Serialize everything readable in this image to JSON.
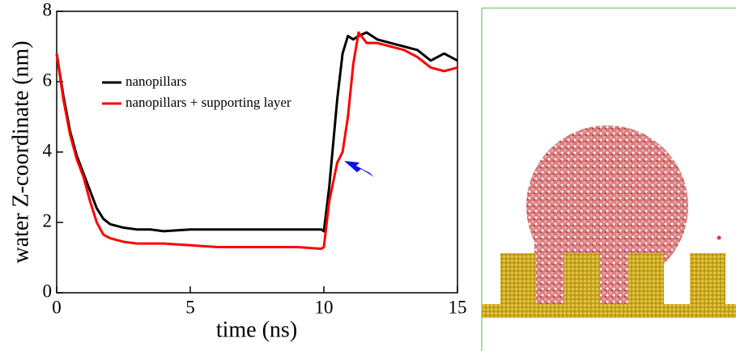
{
  "chart_data": {
    "type": "line",
    "xlabel": "time (ns)",
    "ylabel": "water Z-coordinate (nm)",
    "x": [
      0,
      0.25,
      0.5,
      0.75,
      1,
      1.25,
      1.5,
      1.75,
      2,
      2.5,
      3,
      3.5,
      4,
      5,
      6,
      7,
      8,
      9,
      9.9,
      10,
      10.2,
      10.5,
      10.7,
      10.9,
      11.1,
      11.3,
      11.6,
      12,
      12.5,
      13,
      13.5,
      14,
      14.5,
      15
    ],
    "series": [
      {
        "name": "nanopillars",
        "color": "#000000",
        "values": [
          6.8,
          5.6,
          4.6,
          3.9,
          3.4,
          2.9,
          2.4,
          2.1,
          1.95,
          1.85,
          1.8,
          1.8,
          1.75,
          1.8,
          1.8,
          1.8,
          1.8,
          1.8,
          1.8,
          1.75,
          3.0,
          5.5,
          6.8,
          7.3,
          7.2,
          7.3,
          7.4,
          7.2,
          7.1,
          7.0,
          6.9,
          6.6,
          6.8,
          6.6
        ]
      },
      {
        "name": "nanopillars + supporting layer",
        "color": "#ff0000",
        "values": [
          6.8,
          5.5,
          4.5,
          3.8,
          3.3,
          2.6,
          2.0,
          1.65,
          1.55,
          1.45,
          1.4,
          1.4,
          1.4,
          1.35,
          1.3,
          1.3,
          1.3,
          1.3,
          1.25,
          1.3,
          2.6,
          3.7,
          4.0,
          5.0,
          6.5,
          7.4,
          7.1,
          7.1,
          7.0,
          6.9,
          6.7,
          6.4,
          6.3,
          6.4
        ]
      }
    ],
    "xlim": [
      0,
      15
    ],
    "xticks": [
      0,
      5,
      10,
      15
    ],
    "ylim": [
      0,
      8
    ],
    "yticks": [
      0,
      2,
      4,
      6,
      8
    ]
  }
}
